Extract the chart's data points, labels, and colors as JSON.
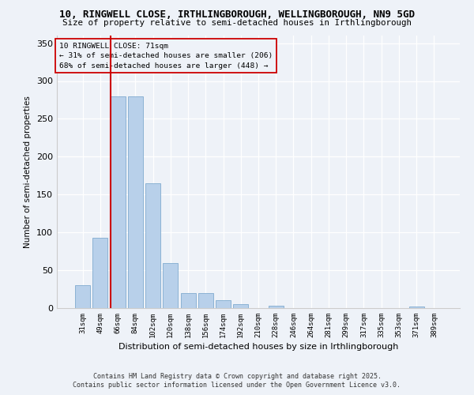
{
  "title1": "10, RINGWELL CLOSE, IRTHLINGBOROUGH, WELLINGBOROUGH, NN9 5GD",
  "title2": "Size of property relative to semi-detached houses in Irthlingborough",
  "xlabel": "Distribution of semi-detached houses by size in Irthlingborough",
  "ylabel": "Number of semi-detached properties",
  "categories": [
    "31sqm",
    "49sqm",
    "66sqm",
    "84sqm",
    "102sqm",
    "120sqm",
    "138sqm",
    "156sqm",
    "174sqm",
    "192sqm",
    "210sqm",
    "228sqm",
    "246sqm",
    "264sqm",
    "281sqm",
    "299sqm",
    "317sqm",
    "335sqm",
    "353sqm",
    "371sqm",
    "389sqm"
  ],
  "values": [
    30,
    93,
    280,
    280,
    165,
    60,
    20,
    20,
    10,
    5,
    0,
    3,
    0,
    0,
    0,
    0,
    0,
    0,
    0,
    2,
    0
  ],
  "bar_color": "#b8d0ea",
  "bar_edge_color": "#6fa0c8",
  "vline_color": "#cc0000",
  "vline_pos": 1.6,
  "annotation_title": "10 RINGWELL CLOSE: 71sqm",
  "annotation_line1": "← 31% of semi-detached houses are smaller (206)",
  "annotation_line2": "68% of semi-detached houses are larger (448) →",
  "ylim": [
    0,
    360
  ],
  "yticks": [
    0,
    50,
    100,
    150,
    200,
    250,
    300,
    350
  ],
  "footer1": "Contains HM Land Registry data © Crown copyright and database right 2025.",
  "footer2": "Contains public sector information licensed under the Open Government Licence v3.0.",
  "bg_color": "#eef2f8"
}
